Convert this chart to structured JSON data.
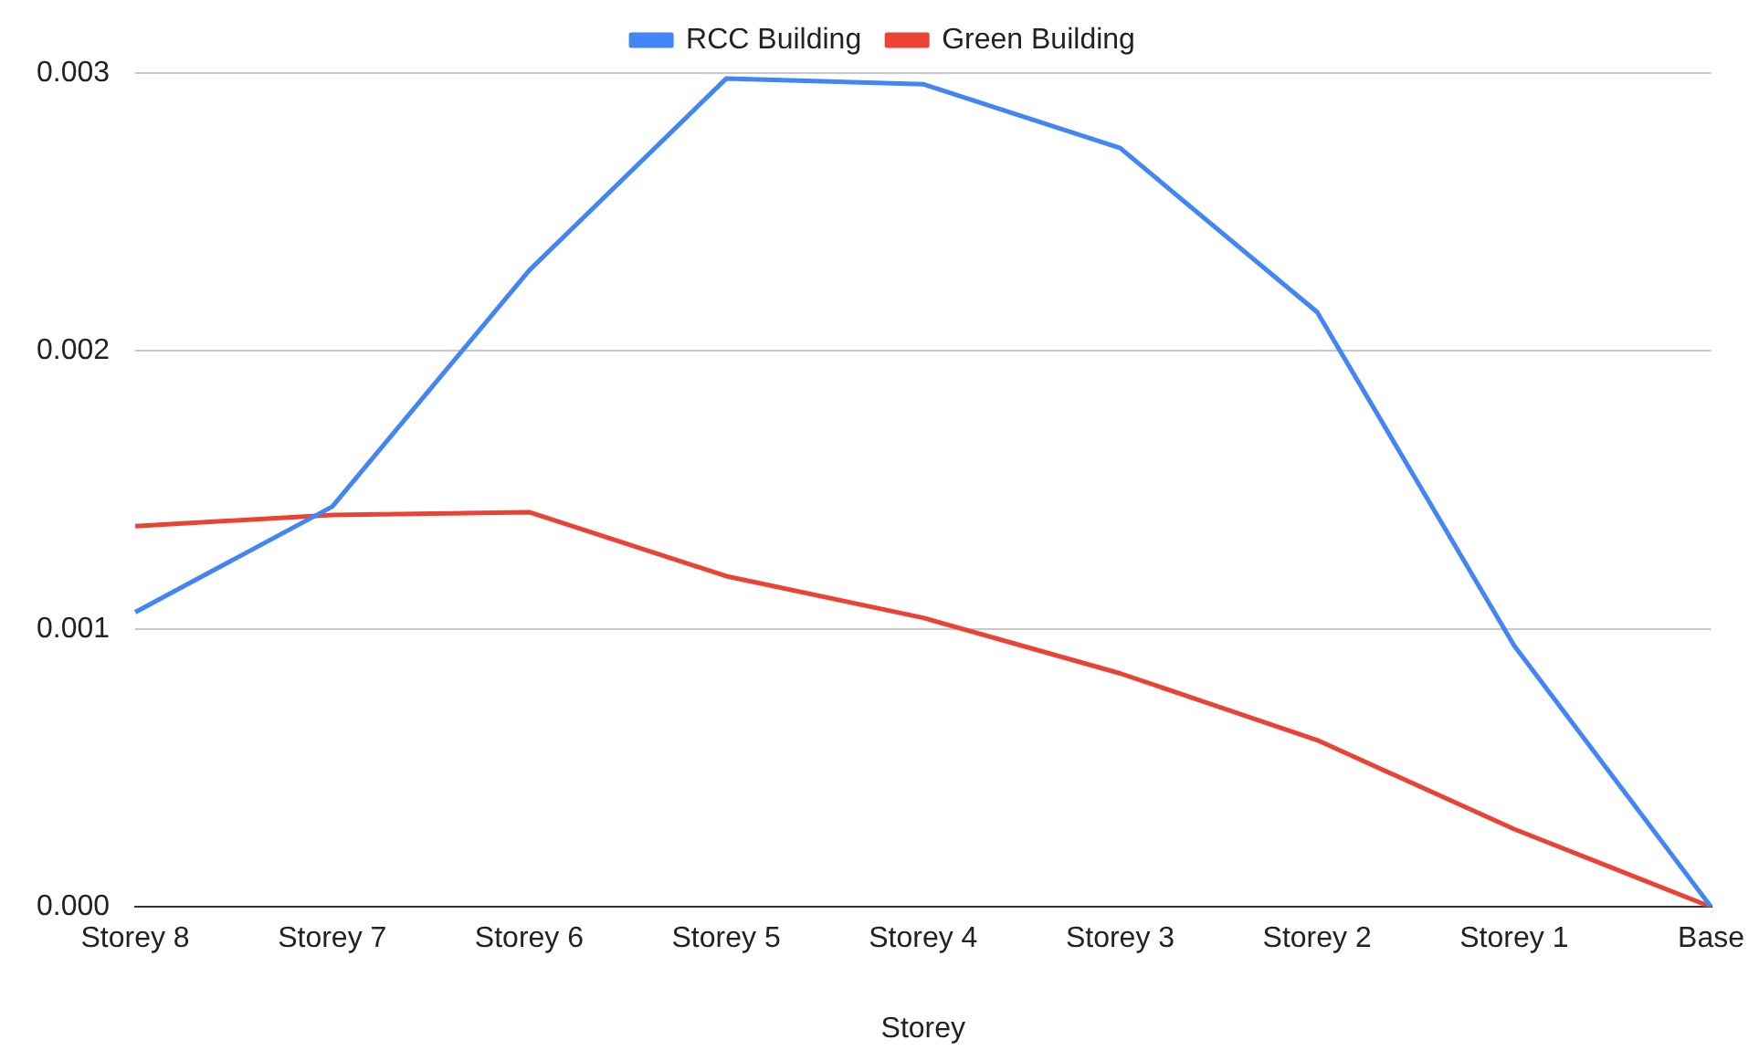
{
  "chart_data": {
    "type": "line",
    "xlabel": "Storey",
    "categories": [
      "Storey 8",
      "Storey 7",
      "Storey 6",
      "Storey 5",
      "Storey 4",
      "Storey 3",
      "Storey 2",
      "Storey 1",
      "Base"
    ],
    "series": [
      {
        "name": "RCC Building",
        "color": "#4285f4",
        "values": [
          0.00106,
          0.00144,
          0.00229,
          0.00298,
          0.00296,
          0.00273,
          0.00214,
          0.00094,
          0
        ]
      },
      {
        "name": "Green Building",
        "color": "#ea4335",
        "values": [
          0.00137,
          0.00141,
          0.00142,
          0.00119,
          0.00104,
          0.00084,
          0.0006,
          0.00028,
          0
        ]
      }
    ],
    "ylim": [
      0,
      0.003
    ],
    "yticks": [
      {
        "value": 0,
        "label": "0.000"
      },
      0.001,
      0.002,
      0.003
    ],
    "grid": "y",
    "legend": "top",
    "marker": "none"
  }
}
